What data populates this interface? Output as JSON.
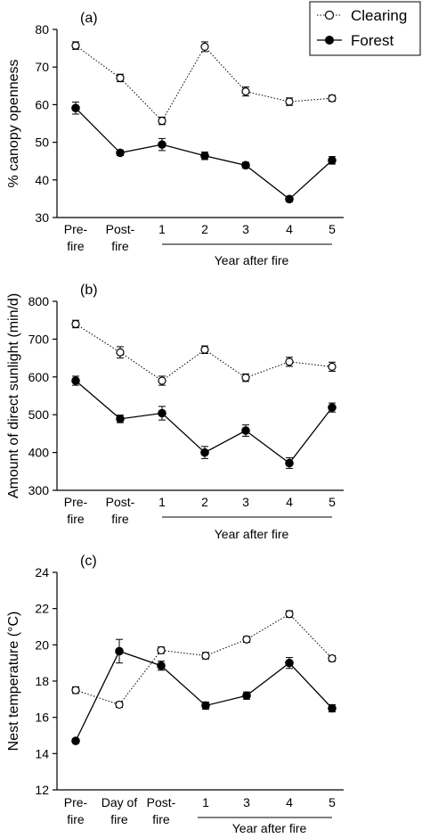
{
  "legend": {
    "placement": "top-right",
    "entries": [
      {
        "key": "clearing",
        "label": "Clearing",
        "marker": "open-circle",
        "line": "dotted"
      },
      {
        "key": "forest",
        "label": "Forest",
        "marker": "filled-circle",
        "line": "solid"
      }
    ]
  },
  "chart_data": [
    {
      "type": "line",
      "panel_label": "(a)",
      "ylabel": "% canopy openness",
      "xlabel": "Year after fire",
      "ylim": [
        30,
        80
      ],
      "yticks": [
        30,
        40,
        50,
        60,
        70,
        80
      ],
      "categories": [
        "Pre-\nfire",
        "Post-\nfire",
        "1",
        "2",
        "3",
        "4",
        "5"
      ],
      "series": [
        {
          "name": "Clearing",
          "values": [
            75.7,
            67.1,
            55.7,
            75.4,
            63.5,
            60.8,
            61.7
          ],
          "errors": [
            1.0,
            1.0,
            1.0,
            1.3,
            1.2,
            1.0,
            0.8
          ]
        },
        {
          "name": "Forest",
          "values": [
            59.1,
            47.2,
            49.4,
            46.4,
            43.9,
            34.9,
            45.2
          ],
          "errors": [
            1.6,
            0.7,
            1.6,
            1.0,
            0.8,
            0.7,
            1.0
          ]
        }
      ]
    },
    {
      "type": "line",
      "panel_label": "(b)",
      "ylabel": "Amount of direct sunlight (min/d)",
      "xlabel": "Year after fire",
      "ylim": [
        300,
        800
      ],
      "yticks": [
        300,
        400,
        500,
        600,
        700,
        800
      ],
      "categories": [
        "Pre-\nfire",
        "Post-\nfire",
        "1",
        "2",
        "3",
        "4",
        "5"
      ],
      "series": [
        {
          "name": "Clearing",
          "values": [
            740,
            665,
            590,
            672,
            598,
            640,
            627
          ],
          "errors": [
            10,
            15,
            12,
            10,
            10,
            12,
            12
          ]
        },
        {
          "name": "Forest",
          "values": [
            590,
            489,
            504,
            400,
            458,
            372,
            519
          ],
          "errors": [
            12,
            10,
            18,
            16,
            15,
            14,
            12
          ]
        }
      ]
    },
    {
      "type": "line",
      "panel_label": "(c)",
      "ylabel": "Nest temperature (°C)",
      "xlabel": "Year after fire",
      "ylim": [
        12,
        24
      ],
      "yticks": [
        12,
        14,
        16,
        18,
        20,
        22,
        24
      ],
      "categories": [
        "Pre-\nfire",
        "Day of\nfire",
        "Post-\nfire",
        "1",
        "3",
        "4",
        "5"
      ],
      "series": [
        {
          "name": "Clearing",
          "values": [
            17.5,
            16.7,
            19.7,
            19.4,
            20.3,
            21.7,
            19.25
          ],
          "errors": [
            0.18,
            0.15,
            0.18,
            0.18,
            0.16,
            0.18,
            0.16
          ]
        },
        {
          "name": "Forest",
          "values": [
            14.7,
            19.65,
            18.85,
            16.65,
            17.2,
            19.0,
            16.5
          ],
          "errors": [
            0.12,
            0.65,
            0.25,
            0.2,
            0.2,
            0.3,
            0.2
          ]
        }
      ]
    }
  ]
}
